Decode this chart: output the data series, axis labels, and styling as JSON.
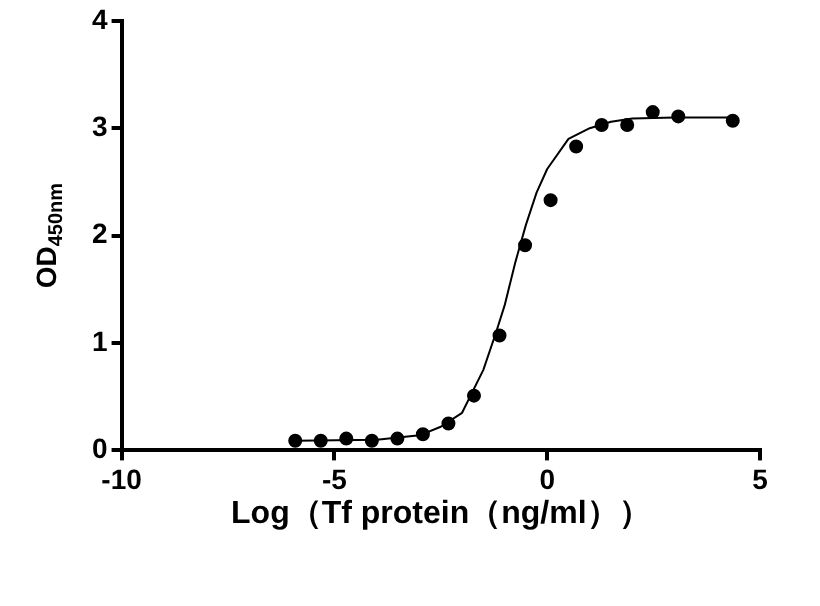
{
  "chart_data": {
    "type": "scatter",
    "xlabel": "Log（Tf protein（ng/ml））",
    "ylabel": "OD$_{450nm}$",
    "xlim": [
      -10,
      5
    ],
    "xticks": [
      -10,
      -5,
      0,
      5
    ],
    "ylim": [
      0,
      4
    ],
    "yticks": [
      0,
      1,
      2,
      3,
      4
    ],
    "grid": false,
    "legend": false,
    "marker": "circle",
    "series": [
      {
        "color": "#000000",
        "x": [
          -5.92,
          -5.32,
          -4.72,
          -4.12,
          -3.52,
          -2.92,
          -2.32,
          -1.72,
          -1.12,
          -0.52,
          0.08,
          0.68,
          1.28,
          1.88,
          2.48,
          3.08,
          4.36
        ],
        "values": [
          0.09,
          0.09,
          0.11,
          0.09,
          0.11,
          0.15,
          0.25,
          0.51,
          1.07,
          1.91,
          2.33,
          2.83,
          3.03,
          3.03,
          3.15,
          3.11,
          3.07
        ]
      },
      {
        "type": "line",
        "color": "#000000",
        "marker": "none",
        "x": [
          -5.92,
          -4,
          -3,
          -2.5,
          -2,
          -1.5,
          -1.2,
          -1,
          -0.75,
          -0.5,
          -0.25,
          0,
          0.5,
          1,
          1.5,
          2,
          3,
          4.36
        ],
        "values": [
          0.09,
          0.1,
          0.14,
          0.22,
          0.35,
          0.75,
          1.1,
          1.35,
          1.75,
          2.1,
          2.4,
          2.62,
          2.9,
          3.0,
          3.06,
          3.09,
          3.1,
          3.1
        ]
      }
    ]
  }
}
